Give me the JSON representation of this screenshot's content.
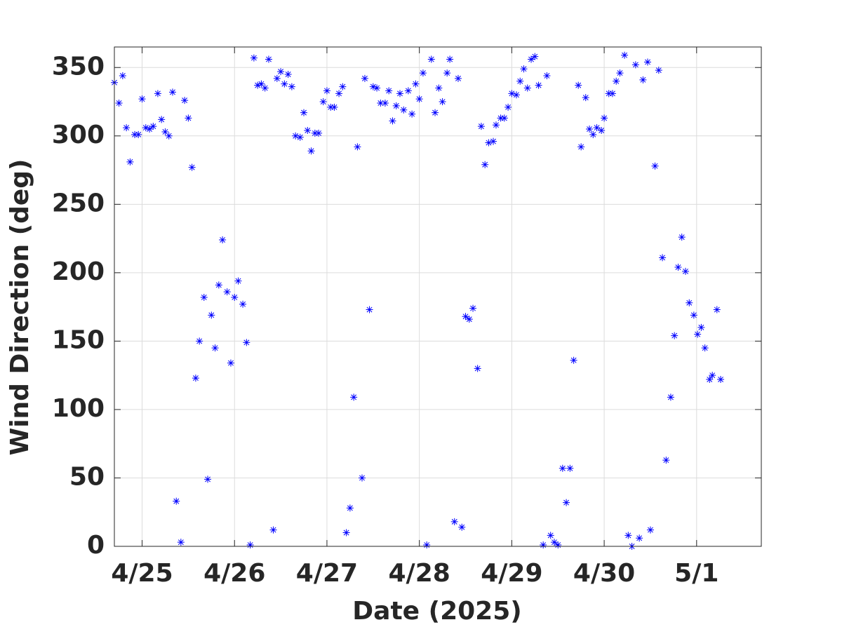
{
  "chart_data": {
    "type": "scatter",
    "xlabel": "Date (2025)",
    "ylabel": "Wind Direction (deg)",
    "marker": "asterisk",
    "color": "#0000ff",
    "grid": true,
    "xlim": [
      24.7,
      31.7
    ],
    "ylim": [
      0,
      365
    ],
    "xticks": [
      {
        "value": 25,
        "label": "4/25"
      },
      {
        "value": 26,
        "label": "4/26"
      },
      {
        "value": 27,
        "label": "4/27"
      },
      {
        "value": 28,
        "label": "4/28"
      },
      {
        "value": 29,
        "label": "4/29"
      },
      {
        "value": 30,
        "label": "4/30"
      },
      {
        "value": 31,
        "label": "5/1"
      }
    ],
    "yticks": [
      0,
      50,
      100,
      150,
      200,
      250,
      300,
      350
    ],
    "x": [
      24.7,
      24.75,
      24.79,
      24.83,
      24.87,
      24.92,
      24.96,
      25.0,
      25.04,
      25.08,
      25.12,
      25.17,
      25.21,
      25.25,
      25.29,
      25.33,
      25.37,
      25.42,
      25.46,
      25.5,
      25.54,
      25.58,
      25.62,
      25.67,
      25.71,
      25.75,
      25.79,
      25.83,
      25.87,
      25.92,
      25.96,
      26.0,
      26.04,
      26.09,
      26.13,
      26.17,
      26.21,
      26.25,
      26.29,
      26.33,
      26.37,
      26.42,
      26.46,
      26.5,
      26.54,
      26.58,
      26.62,
      26.66,
      26.71,
      26.75,
      26.79,
      26.83,
      26.87,
      26.91,
      26.96,
      27.0,
      27.04,
      27.08,
      27.13,
      27.17,
      27.21,
      27.25,
      27.29,
      27.33,
      27.38,
      27.41,
      27.46,
      27.5,
      27.54,
      27.58,
      27.63,
      27.67,
      27.71,
      27.75,
      27.79,
      27.83,
      27.88,
      27.92,
      27.96,
      28.0,
      28.04,
      28.08,
      28.13,
      28.17,
      28.21,
      28.25,
      28.3,
      28.33,
      28.38,
      28.42,
      28.46,
      28.5,
      28.54,
      28.58,
      28.63,
      28.67,
      28.71,
      28.75,
      28.8,
      28.83,
      28.88,
      28.92,
      28.96,
      29.0,
      29.05,
      29.09,
      29.13,
      29.17,
      29.21,
      29.25,
      29.29,
      29.34,
      29.38,
      29.42,
      29.46,
      29.5,
      29.55,
      29.59,
      29.63,
      29.67,
      29.72,
      29.75,
      29.8,
      29.84,
      29.88,
      29.92,
      29.97,
      30.0,
      30.05,
      30.09,
      30.13,
      30.17,
      30.22,
      30.26,
      30.3,
      30.34,
      30.38,
      30.42,
      30.47,
      30.5,
      30.55,
      30.59,
      30.63,
      30.67,
      30.72,
      30.76,
      30.8,
      30.84,
      30.88,
      30.92,
      30.97,
      31.01,
      31.05,
      31.09,
      31.14,
      31.17,
      31.22,
      31.26
    ],
    "values": [
      339,
      324,
      344,
      306,
      281,
      301,
      301,
      327,
      306,
      305,
      307,
      331,
      312,
      303,
      300,
      332,
      33,
      3,
      326,
      313,
      277,
      123,
      150,
      182,
      49,
      169,
      145,
      191,
      224,
      186,
      134,
      182,
      194,
      177,
      149,
      1,
      357,
      337,
      338,
      335,
      356,
      12,
      342,
      347,
      338,
      345,
      336,
      300,
      299,
      317,
      304,
      289,
      302,
      302,
      325,
      333,
      321,
      321,
      331,
      336,
      10,
      28,
      109,
      292,
      50,
      342,
      173,
      336,
      335,
      324,
      324,
      333,
      311,
      322,
      331,
      319,
      333,
      316,
      338,
      327,
      346,
      1,
      356,
      317,
      335,
      325,
      346,
      356,
      18,
      342,
      14,
      168,
      166,
      174,
      130,
      307,
      279,
      295,
      296,
      308,
      313,
      313,
      321,
      331,
      330,
      340,
      349,
      335,
      356,
      358,
      337,
      1,
      344,
      8,
      3,
      1,
      57,
      32,
      57,
      136,
      337,
      292,
      328,
      305,
      301,
      306,
      304,
      313,
      331,
      331,
      340,
      346,
      359,
      8,
      0,
      352,
      6,
      341,
      354,
      12,
      278,
      348,
      211,
      63,
      109,
      154,
      204,
      226,
      201,
      178,
      169,
      155,
      160,
      145,
      122,
      125,
      173,
      122
    ]
  }
}
